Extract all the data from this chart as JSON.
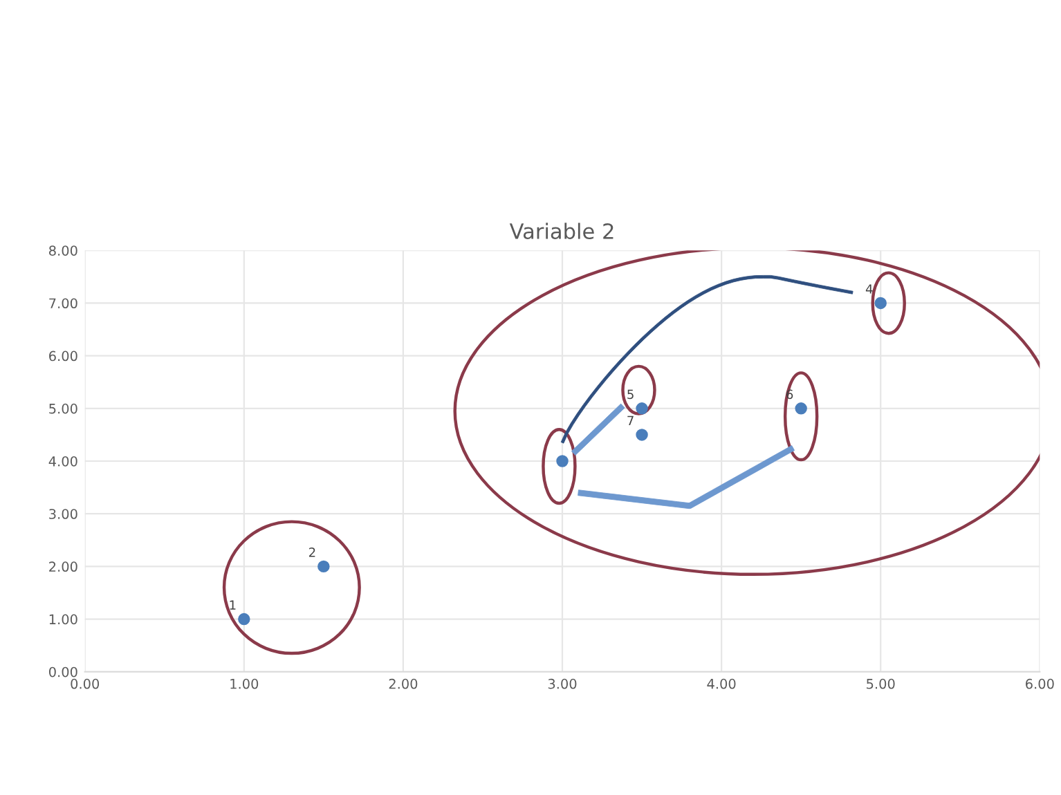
{
  "chart_data": {
    "type": "scatter",
    "title": "Variable 2",
    "x": [
      1.0,
      1.5,
      3.0,
      5.0,
      3.5,
      4.5,
      3.5
    ],
    "series": [
      {
        "color": "#4a7ebb",
        "values": [
          1.0,
          2.0,
          4.0,
          7.0,
          5.0,
          5.0,
          4.5
        ]
      }
    ],
    "xlim": [
      0,
      6
    ],
    "ylim": [
      0,
      8
    ],
    "xticks": [
      {
        "value": 0,
        "label": "0.00"
      },
      {
        "value": 1,
        "label": "1.00"
      },
      {
        "value": 2,
        "label": "2.00"
      },
      {
        "value": 3,
        "label": "3.00"
      },
      {
        "value": 4,
        "label": "4.00"
      },
      {
        "value": 5,
        "label": "5.00"
      },
      {
        "value": 6,
        "label": "6.00"
      }
    ],
    "yticks": [
      {
        "value": 0,
        "label": "0.00"
      },
      {
        "value": 1,
        "label": "1.00"
      },
      {
        "value": 2,
        "label": "2.00"
      },
      {
        "value": 3,
        "label": "3.00"
      },
      {
        "value": 4,
        "label": "4.00"
      },
      {
        "value": 5,
        "label": "5.00"
      },
      {
        "value": 6,
        "label": "6.00"
      },
      {
        "value": 7,
        "label": "7.00"
      },
      {
        "value": 8,
        "label": "8.00"
      }
    ],
    "grid": true,
    "marker": "circle",
    "annotations": [
      {
        "text": "1",
        "x": 1.0,
        "y": 1.0
      },
      {
        "text": "2",
        "x": 1.5,
        "y": 2.0
      },
      {
        "text": "4",
        "x": 5.0,
        "y": 7.0
      },
      {
        "text": "5",
        "x": 3.5,
        "y": 5.0
      },
      {
        "text": "6",
        "x": 4.5,
        "y": 5.0
      },
      {
        "text": "7",
        "x": 3.5,
        "y": 4.5
      }
    ]
  }
}
